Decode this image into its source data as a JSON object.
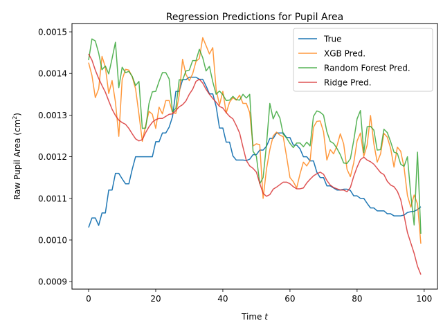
{
  "chart_data": {
    "type": "line",
    "title": "Regression Predictions for Pupil Area",
    "xlabel_main": "Time ",
    "xlabel_var": "t",
    "ylabel_main": "Raw Pupil Area (cm",
    "ylabel_sup": "2",
    "ylabel_end": ")",
    "xlim": [
      -4.95,
      103.95
    ],
    "ylim": [
      0.000882,
      0.00152
    ],
    "xticks": [
      0,
      20,
      40,
      60,
      80,
      100
    ],
    "xtick_labels": [
      "0",
      "20",
      "40",
      "60",
      "80",
      "100"
    ],
    "yticks": [
      0.0009,
      0.001,
      0.0011,
      0.0012,
      0.0013,
      0.0014,
      0.0015
    ],
    "ytick_labels": [
      "0.0009",
      "0.0010",
      "0.0011",
      "0.0012",
      "0.0013",
      "0.0014",
      "0.0015"
    ],
    "legend_position": "top-right",
    "series": [
      {
        "name": "True",
        "color": "#1f77b4",
        "values": [
          0.00103,
          0.001053,
          0.001053,
          0.001035,
          0.001065,
          0.001065,
          0.00112,
          0.00112,
          0.00116,
          0.00116,
          0.001147,
          0.001135,
          0.001135,
          0.00117,
          0.0012,
          0.0012,
          0.0012,
          0.0012,
          0.0012,
          0.0012,
          0.001236,
          0.001236,
          0.001257,
          0.001257,
          0.001271,
          0.001296,
          0.001357,
          0.001357,
          0.001385,
          0.001385,
          0.001391,
          0.001391,
          0.001391,
          0.001386,
          0.001386,
          0.00137,
          0.001351,
          0.001351,
          0.001321,
          0.001269,
          0.001269,
          0.001235,
          0.001235,
          0.001202,
          0.001192,
          0.001192,
          0.001192,
          0.001191,
          0.001194,
          0.001205,
          0.001205,
          0.001216,
          0.001216,
          0.001225,
          0.001244,
          0.001244,
          0.001257,
          0.001257,
          0.001257,
          0.001246,
          0.001246,
          0.001228,
          0.001228,
          0.001219,
          0.0012,
          0.0012,
          0.00119,
          0.00119,
          0.001163,
          0.00115,
          0.00115,
          0.00113,
          0.00113,
          0.001125,
          0.00112,
          0.00112,
          0.001122,
          0.001122,
          0.001119,
          0.001106,
          0.001106,
          0.0011,
          0.0011,
          0.001088,
          0.001077,
          0.001077,
          0.00107,
          0.00107,
          0.00107,
          0.001063,
          0.001063,
          0.001058,
          0.001058,
          0.001058,
          0.00106,
          0.001066,
          0.001068,
          0.001069,
          0.001073,
          0.00108
        ]
      },
      {
        "name": "XGB Pred.",
        "color": "#ff7f0e",
        "values": [
          0.001426,
          0.001395,
          0.001342,
          0.001363,
          0.001441,
          0.001415,
          0.001352,
          0.001383,
          0.001331,
          0.001249,
          0.001385,
          0.00141,
          0.001408,
          0.001392,
          0.001363,
          0.001302,
          0.001237,
          0.001275,
          0.001309,
          0.001302,
          0.001268,
          0.001319,
          0.001303,
          0.001335,
          0.001335,
          0.001306,
          0.001304,
          0.001348,
          0.001434,
          0.001398,
          0.001383,
          0.001399,
          0.001429,
          0.001436,
          0.001486,
          0.001467,
          0.001447,
          0.001462,
          0.001362,
          0.001324,
          0.001357,
          0.001305,
          0.001331,
          0.001342,
          0.001336,
          0.001348,
          0.001328,
          0.001328,
          0.001306,
          0.001226,
          0.001231,
          0.001229,
          0.0011,
          0.00117,
          0.001217,
          0.00125,
          0.001259,
          0.001252,
          0.001248,
          0.0012,
          0.00115,
          0.00114,
          0.001125,
          0.001159,
          0.001187,
          0.001178,
          0.001191,
          0.001271,
          0.001285,
          0.001286,
          0.00126,
          0.001192,
          0.001217,
          0.001207,
          0.001226,
          0.001255,
          0.001231,
          0.00117,
          0.001152,
          0.001185,
          0.001238,
          0.001257,
          0.001201,
          0.001228,
          0.001299,
          0.001231,
          0.001187,
          0.001207,
          0.001256,
          0.001247,
          0.00122,
          0.001175,
          0.001223,
          0.001213,
          0.001174,
          0.001107,
          0.001079,
          0.001108,
          0.001087,
          0.000991
        ]
      },
      {
        "name": "Random Forest Pred.",
        "color": "#2ca02c",
        "values": [
          0.001432,
          0.001483,
          0.001478,
          0.001449,
          0.001409,
          0.001418,
          0.001399,
          0.001436,
          0.001475,
          0.001366,
          0.001415,
          0.001402,
          0.001405,
          0.001393,
          0.001371,
          0.001381,
          0.001268,
          0.001269,
          0.001328,
          0.001356,
          0.001357,
          0.001381,
          0.001402,
          0.001402,
          0.001387,
          0.001308,
          0.001316,
          0.001385,
          0.001384,
          0.001406,
          0.001408,
          0.001431,
          0.001431,
          0.001458,
          0.001438,
          0.001406,
          0.001417,
          0.00138,
          0.00135,
          0.001358,
          0.001349,
          0.001335,
          0.001336,
          0.001345,
          0.001337,
          0.001336,
          0.00135,
          0.001341,
          0.00135,
          0.001213,
          0.001201,
          0.001135,
          0.00115,
          0.001229,
          0.001328,
          0.001291,
          0.001309,
          0.001293,
          0.001254,
          0.001245,
          0.001232,
          0.001222,
          0.001233,
          0.001233,
          0.001224,
          0.001235,
          0.001226,
          0.001297,
          0.00131,
          0.001307,
          0.0013,
          0.00126,
          0.001237,
          0.001232,
          0.00122,
          0.001205,
          0.001185,
          0.001184,
          0.001195,
          0.001239,
          0.001291,
          0.001311,
          0.00121,
          0.001272,
          0.001273,
          0.001264,
          0.001216,
          0.001217,
          0.001266,
          0.001258,
          0.001236,
          0.001211,
          0.001208,
          0.001182,
          0.001177,
          0.0012,
          0.001109,
          0.001036,
          0.001211,
          0.001015
        ]
      },
      {
        "name": "Ridge Pred.",
        "color": "#d62728",
        "values": [
          0.001447,
          0.001432,
          0.001408,
          0.001388,
          0.001371,
          0.001355,
          0.001334,
          0.001314,
          0.001299,
          0.001288,
          0.001282,
          0.001278,
          0.001268,
          0.001255,
          0.001243,
          0.001238,
          0.001241,
          0.001258,
          0.001272,
          0.001283,
          0.001289,
          0.001292,
          0.001292,
          0.001297,
          0.001302,
          0.001303,
          0.001311,
          0.00132,
          0.001325,
          0.001334,
          0.00135,
          0.001362,
          0.001381,
          0.001386,
          0.001377,
          0.001362,
          0.00135,
          0.00134,
          0.001331,
          0.001321,
          0.001317,
          0.001306,
          0.001297,
          0.001291,
          0.001275,
          0.001257,
          0.001223,
          0.001191,
          0.001178,
          0.001172,
          0.001163,
          0.001136,
          0.001112,
          0.001105,
          0.001109,
          0.001122,
          0.001127,
          0.001133,
          0.001139,
          0.001139,
          0.001135,
          0.001128,
          0.001123,
          0.001123,
          0.001125,
          0.001137,
          0.001146,
          0.001154,
          0.001159,
          0.001163,
          0.001158,
          0.001143,
          0.001132,
          0.001126,
          0.001123,
          0.00112,
          0.00112,
          0.001116,
          0.001126,
          0.001153,
          0.001175,
          0.001193,
          0.001199,
          0.001192,
          0.001188,
          0.001182,
          0.001172,
          0.001162,
          0.001157,
          0.001141,
          0.001132,
          0.001128,
          0.001117,
          0.001097,
          0.001059,
          0.001018,
          0.000993,
          0.000968,
          0.000937,
          0.000917
        ]
      }
    ]
  }
}
